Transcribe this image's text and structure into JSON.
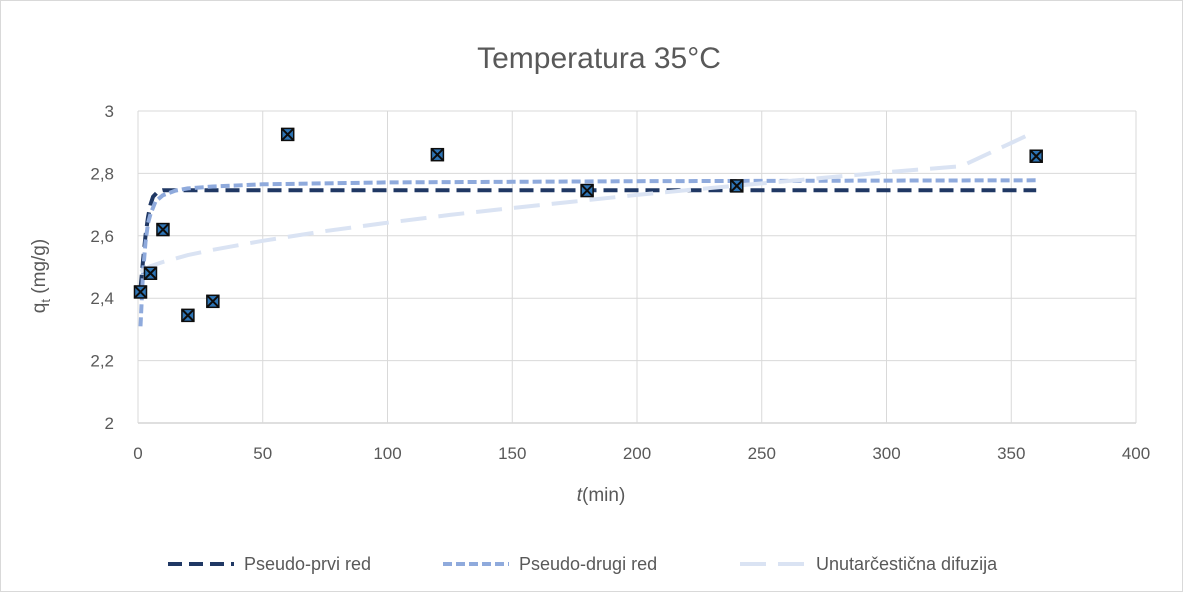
{
  "chart_data": {
    "type": "scatter",
    "title": "Temperatura 35°C",
    "xlabel": {
      "italic": "t",
      "rest": "(min)"
    },
    "ylabel": {
      "base": "q",
      "sub": "t",
      "rest": " (mg/g)"
    },
    "xlim": [
      0,
      400
    ],
    "ylim": [
      2,
      3
    ],
    "x_ticks": [
      0,
      50,
      100,
      150,
      200,
      250,
      300,
      350,
      400
    ],
    "y_ticks": [
      2,
      2.2,
      2.4,
      2.6,
      2.8,
      3
    ],
    "decimal_separator": ",",
    "grid": true,
    "legend_position": "bottom",
    "points": {
      "x": [
        1,
        5,
        10,
        20,
        30,
        60,
        120,
        180,
        240,
        360
      ],
      "y": [
        2.42,
        2.48,
        2.62,
        2.345,
        2.39,
        2.925,
        2.86,
        2.745,
        2.76,
        2.855
      ],
      "color": "#1f3b57"
    },
    "series": [
      {
        "name": "Pseudo-prvi red",
        "color": "#203864",
        "x": [
          1,
          2,
          3,
          4,
          5,
          6,
          8,
          10,
          20,
          60,
          120,
          180,
          240,
          300,
          360
        ],
        "y": [
          2.43,
          2.52,
          2.6,
          2.66,
          2.7,
          2.725,
          2.742,
          2.746,
          2.746,
          2.746,
          2.746,
          2.746,
          2.746,
          2.746,
          2.746
        ]
      },
      {
        "name": "Pseudo-drugi red",
        "color": "#8faadc",
        "x": [
          1,
          2,
          3,
          4,
          5,
          7,
          10,
          15,
          20,
          30,
          50,
          100,
          150,
          200,
          250,
          300,
          360
        ],
        "y": [
          2.31,
          2.48,
          2.58,
          2.64,
          2.67,
          2.71,
          2.73,
          2.745,
          2.752,
          2.758,
          2.765,
          2.771,
          2.773,
          2.775,
          2.776,
          2.777,
          2.778
        ]
      },
      {
        "name": "Unutarčestična difuzija",
        "color": "#dae3f3",
        "x": [
          1,
          5,
          10,
          20,
          30,
          50,
          75,
          100,
          125,
          150,
          175,
          200,
          225,
          250,
          275,
          300,
          330,
          360
        ],
        "y": [
          2.485,
          2.503,
          2.516,
          2.538,
          2.555,
          2.584,
          2.615,
          2.642,
          2.667,
          2.689,
          2.71,
          2.731,
          2.75,
          2.768,
          2.786,
          2.804,
          2.823,
          2.935
        ]
      }
    ]
  }
}
